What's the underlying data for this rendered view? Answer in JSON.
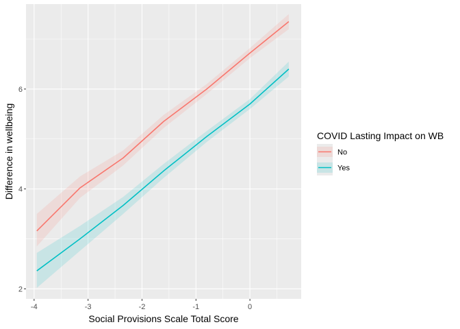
{
  "chart_data": {
    "type": "line",
    "title": "",
    "xlabel": "Social Provisions Scale Total Score",
    "ylabel": "Difference in wellbeing",
    "xlim": [
      -4.15,
      0.95
    ],
    "ylim": [
      1.8,
      7.7
    ],
    "x_ticks": [
      "-4",
      "-3",
      "-2",
      "-1",
      "0"
    ],
    "y_ticks": [
      "2",
      "4",
      "6"
    ],
    "grid": true,
    "legend": {
      "title": "COVID Lasting Impact on WB",
      "position": "right",
      "entries": [
        "No",
        "Yes"
      ]
    },
    "series": [
      {
        "name": "No",
        "color": "#F8766D",
        "x": [
          -3.95,
          -3.15,
          -2.35,
          -1.6,
          -0.8,
          0,
          0.72
        ],
        "y": [
          3.16,
          4.02,
          4.62,
          5.35,
          6.0,
          6.72,
          7.35
        ],
        "lower": [
          2.85,
          3.82,
          4.47,
          5.22,
          5.9,
          6.62,
          7.2
        ],
        "upper": [
          3.5,
          4.25,
          4.77,
          5.48,
          6.1,
          6.82,
          7.5
        ]
      },
      {
        "name": "Yes",
        "color": "#00BFC4",
        "x": [
          -3.95,
          -3.15,
          -2.35,
          -1.6,
          -0.8,
          0,
          0.72
        ],
        "y": [
          2.36,
          3.0,
          3.67,
          4.36,
          5.05,
          5.7,
          6.4
        ],
        "lower": [
          2.02,
          2.76,
          3.5,
          4.22,
          4.94,
          5.6,
          6.25
        ],
        "upper": [
          2.72,
          3.26,
          3.84,
          4.5,
          5.16,
          5.8,
          6.55
        ]
      }
    ]
  }
}
